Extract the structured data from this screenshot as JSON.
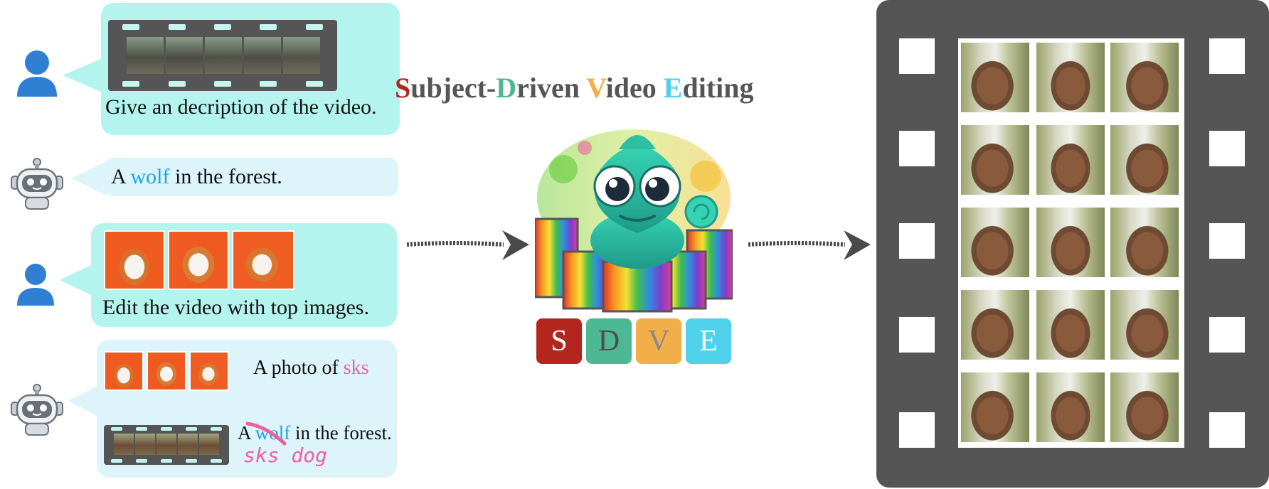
{
  "title": {
    "parts": [
      {
        "initial": "S",
        "rest": "ubject-"
      },
      {
        "initial": "D",
        "rest": "riven "
      },
      {
        "initial": "V",
        "rest": "ideo "
      },
      {
        "initial": "E",
        "rest": "diting"
      }
    ]
  },
  "letters": [
    "S",
    "D",
    "V",
    "E"
  ],
  "colors": {
    "S": "#b3261e",
    "D": "#4db894",
    "V": "#f2ae48",
    "E": "#4fd1ec",
    "user_bubble": "#b3f4ee",
    "bot_bubble": "#def4fb",
    "user_icon": "#2f7fd3",
    "highlight_wolf": "#1ba6e0",
    "highlight_sks": "#ee5fa0",
    "film": "#555555"
  },
  "chat": {
    "msg1": {
      "speaker": "user",
      "text": "Give an decription of the video."
    },
    "msg2": {
      "speaker": "robot",
      "pre": "A ",
      "keyword": "wolf",
      "post": " in the forest."
    },
    "msg3": {
      "speaker": "user",
      "text": "Edit the video with top images."
    },
    "msg4": {
      "speaker": "robot",
      "photo_caption_pre": "A photo of ",
      "photo_caption_keyword": "sks",
      "edit_pre": "A ",
      "edit_struck": "wolf",
      "edit_post": " in the forest.",
      "handwritten": "sks dog"
    }
  },
  "icons": {
    "user": "user-avatar-icon",
    "robot": "robot-icon",
    "arrow": "arrow-right-icon",
    "mascot": "chameleon-mascot"
  }
}
